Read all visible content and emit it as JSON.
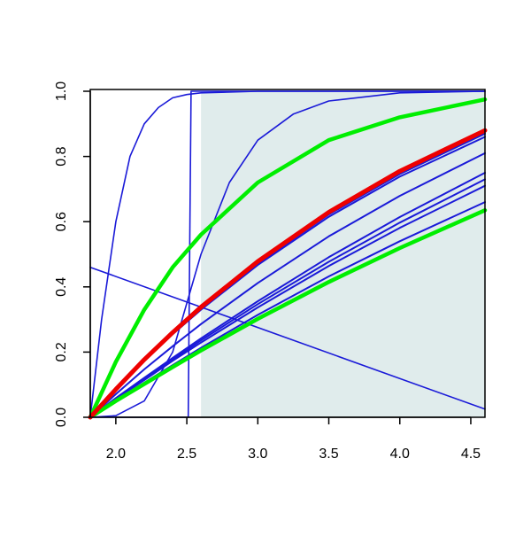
{
  "chart_data": {
    "type": "line",
    "xlim": [
      1.82,
      4.6
    ],
    "ylim": [
      0,
      1
    ],
    "xticks": [
      {
        "value": 2.0,
        "label": "2.0"
      },
      2.5,
      {
        "value": 3.0,
        "label": "3.0"
      },
      3.5,
      {
        "value": 4.0,
        "label": "4.0"
      },
      4.5
    ],
    "yticks": [
      {
        "value": 0,
        "label": "0.0"
      },
      0.2,
      0.4,
      0.6,
      0.8,
      {
        "value": 1,
        "label": "1.0"
      }
    ],
    "shade": {
      "xlim": [
        2.6,
        4.6
      ],
      "color": "#e0ecec"
    },
    "series": [
      {
        "color": "#1a1ad8",
        "width": 1.6,
        "x": [
          1.82,
          1.9,
          2.0,
          2.1,
          2.2,
          2.3,
          2.4,
          2.5,
          2.6,
          3.0,
          4.6
        ],
        "values": [
          0,
          0.3,
          0.6,
          0.8,
          0.9,
          0.95,
          0.98,
          0.99,
          0.995,
          1,
          1
        ]
      },
      {
        "color": "#1a1ad8",
        "width": 1.6,
        "x": [
          1.82,
          2.51,
          2.53,
          4.6
        ],
        "values": [
          0,
          0,
          1,
          1
        ]
      },
      {
        "color": "#1a1ad8",
        "width": 1.6,
        "x": [
          1.82,
          2.0,
          2.2,
          2.4,
          2.6,
          2.8,
          3.0,
          3.25,
          3.5,
          4.0,
          4.6
        ],
        "values": [
          0,
          0.005,
          0.05,
          0.2,
          0.5,
          0.72,
          0.85,
          0.93,
          0.97,
          0.995,
          1
        ]
      },
      {
        "color": "#1a1ad8",
        "width": 1.6,
        "x": [
          1.82,
          4.6
        ],
        "values": [
          0.46,
          0.025
        ]
      },
      {
        "color": "#1a1ad8",
        "width": 2,
        "x": [
          1.82,
          2.0,
          2.2,
          2.4,
          2.6,
          3.0,
          3.5,
          4.0,
          4.6
        ],
        "values": [
          0,
          0.059,
          0.121,
          0.182,
          0.242,
          0.356,
          0.491,
          0.614,
          0.75
        ]
      },
      {
        "color": "#1a1ad8",
        "width": 2,
        "x": [
          1.82,
          2.0,
          2.2,
          2.4,
          2.6,
          3.0,
          3.5,
          4.0,
          4.6
        ],
        "values": [
          0,
          0.058,
          0.118,
          0.177,
          0.236,
          0.347,
          0.477,
          0.597,
          0.73
        ]
      },
      {
        "color": "#1a1ad8",
        "width": 2,
        "x": [
          1.82,
          2.0,
          2.2,
          2.4,
          2.6,
          3.0,
          3.5,
          4.0,
          4.6
        ],
        "values": [
          0,
          0.056,
          0.114,
          0.173,
          0.229,
          0.337,
          0.464,
          0.581,
          0.71
        ]
      },
      {
        "color": "#1a1ad8",
        "width": 2,
        "x": [
          1.82,
          2.0,
          2.2,
          2.4,
          2.6,
          3.0,
          3.5,
          4.0,
          4.6
        ],
        "values": [
          0,
          0.052,
          0.106,
          0.16,
          0.213,
          0.314,
          0.432,
          0.54,
          0.66
        ]
      },
      {
        "color": "#1a1ad8",
        "width": 2,
        "x": [
          1.82,
          2.0,
          2.2,
          2.4,
          2.6,
          3.0,
          3.5,
          4.0,
          4.6
        ],
        "values": [
          0,
          0.071,
          0.147,
          0.218,
          0.286,
          0.412,
          0.555,
          0.679,
          0.81
        ]
      },
      {
        "color": "#1a1ad8",
        "width": 2,
        "x": [
          1.82,
          2.0,
          2.2,
          2.4,
          2.6,
          3.0,
          3.5,
          4.0,
          4.6
        ],
        "values": [
          0,
          0.085,
          0.175,
          0.258,
          0.334,
          0.472,
          0.622,
          0.746,
          0.87
        ]
      },
      {
        "color": "#1a1ad8",
        "width": 2,
        "x": [
          1.82,
          2.0,
          2.2,
          2.4,
          2.6,
          3.0,
          3.5,
          4.0,
          4.6
        ],
        "values": [
          0,
          0.084,
          0.173,
          0.255,
          0.33,
          0.467,
          0.615,
          0.738,
          0.86
        ]
      },
      {
        "color": "#00ee00",
        "width": 4.5,
        "x": [
          1.82,
          2.0,
          2.2,
          2.4,
          2.6,
          3.0,
          3.5,
          4.0,
          4.6
        ],
        "values": [
          0,
          0.05,
          0.102,
          0.154,
          0.205,
          0.302,
          0.415,
          0.519,
          0.635
        ]
      },
      {
        "color": "#00ee00",
        "width": 4.5,
        "x": [
          1.82,
          2.0,
          2.2,
          2.4,
          2.6,
          3.0,
          3.5,
          4.0,
          4.6
        ],
        "values": [
          0,
          0.17,
          0.33,
          0.46,
          0.56,
          0.72,
          0.85,
          0.92,
          0.975
        ]
      },
      {
        "color": "#ee0000",
        "width": 5,
        "x": [
          1.82,
          2.0,
          2.2,
          2.4,
          2.6,
          3.0,
          3.5,
          4.0,
          4.6
        ],
        "values": [
          0,
          0.086,
          0.177,
          0.26,
          0.338,
          0.478,
          0.629,
          0.755,
          0.88
        ]
      }
    ]
  }
}
